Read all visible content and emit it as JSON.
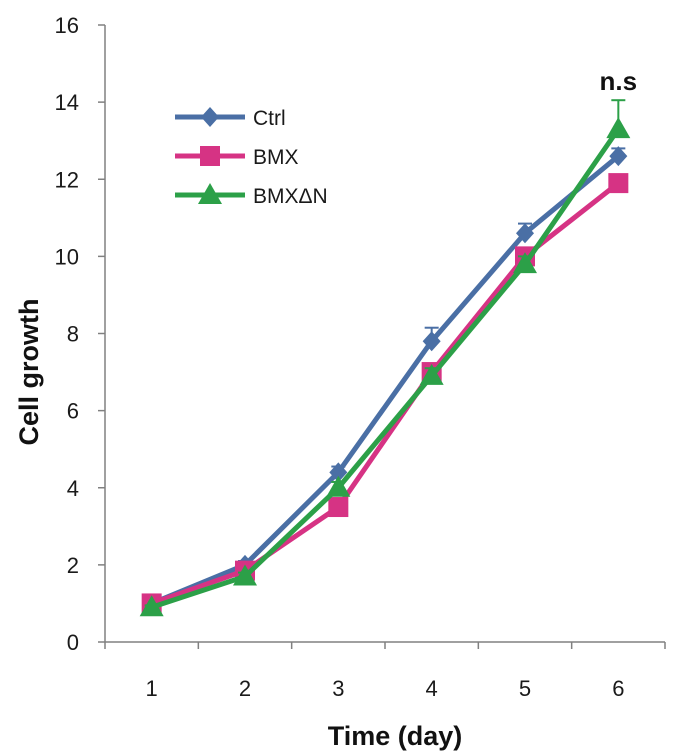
{
  "chart_data": {
    "type": "line",
    "title": "",
    "xlabel": "Time (day)",
    "ylabel": "Cell growth",
    "x": [
      1,
      2,
      3,
      4,
      5,
      6
    ],
    "xlim": [
      0.5,
      6.5
    ],
    "ylim": [
      0,
      16
    ],
    "yticks": [
      0,
      2,
      4,
      6,
      8,
      10,
      12,
      14,
      16
    ],
    "grid": false,
    "legend_position": "top-left",
    "series": [
      {
        "name": "Ctrl",
        "color": "#4a6fa5",
        "marker": "diamond",
        "values": [
          1.0,
          2.0,
          4.4,
          7.8,
          10.6,
          12.6
        ],
        "error": [
          0.05,
          0.1,
          0.15,
          0.35,
          0.25,
          0.2
        ]
      },
      {
        "name": "BMX",
        "color": "#d63384",
        "marker": "square",
        "values": [
          1.0,
          1.85,
          3.5,
          7.0,
          10.0,
          11.9
        ],
        "error": [
          0.05,
          0.1,
          0.1,
          0.2,
          0.2,
          0.2
        ]
      },
      {
        "name": "BMXΔN",
        "color": "#2ca048",
        "marker": "triangle",
        "values": [
          0.9,
          1.7,
          4.0,
          6.9,
          9.8,
          13.3
        ],
        "error": [
          0.05,
          0.1,
          0.15,
          0.2,
          0.2,
          0.75
        ]
      }
    ],
    "annotations": [
      {
        "text": "n.s",
        "x": 6,
        "y": 14.0
      }
    ]
  }
}
